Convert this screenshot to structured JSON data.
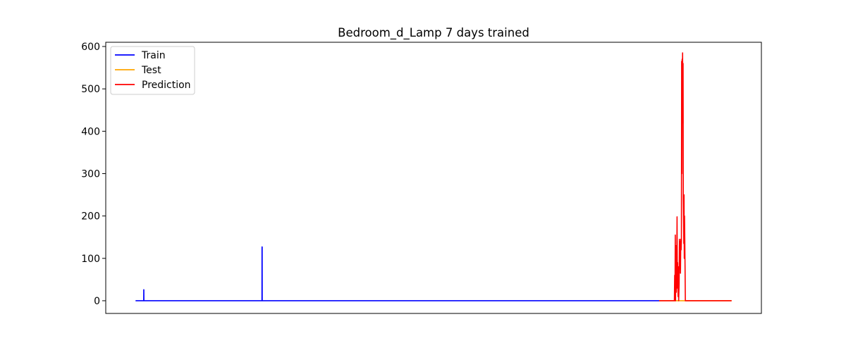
{
  "chart_data": {
    "type": "line",
    "title": "Bedroom_d_Lamp 7 days trained",
    "xlabel": "",
    "ylabel": "",
    "x_ticks_shown": false,
    "xlim": [
      -0.05,
      1.05
    ],
    "ylim": [
      -30,
      610
    ],
    "yticks": [
      0,
      100,
      200,
      300,
      400,
      500,
      600
    ],
    "grid": false,
    "legend_position": "upper left",
    "series": [
      {
        "name": "Train",
        "color": "#0000ff",
        "points": [
          [
            0.0,
            0
          ],
          [
            0.0137,
            0
          ],
          [
            0.0138,
            26
          ],
          [
            0.0139,
            26
          ],
          [
            0.014,
            0
          ],
          [
            0.2121,
            0
          ],
          [
            0.2122,
            127
          ],
          [
            0.2124,
            127
          ],
          [
            0.2125,
            0
          ],
          [
            0.8785,
            0
          ]
        ]
      },
      {
        "name": "Test",
        "color": "#ffa500",
        "points": [
          [
            0.8785,
            0
          ],
          [
            1.0,
            0
          ]
        ]
      },
      {
        "name": "Prediction",
        "color": "#ff0000",
        "points": [
          [
            0.8785,
            0
          ],
          [
            0.904,
            0
          ],
          [
            0.9045,
            60
          ],
          [
            0.905,
            0
          ],
          [
            0.9055,
            155
          ],
          [
            0.906,
            0
          ],
          [
            0.9068,
            130
          ],
          [
            0.9073,
            20
          ],
          [
            0.908,
            85
          ],
          [
            0.9085,
            198
          ],
          [
            0.909,
            30
          ],
          [
            0.9095,
            90
          ],
          [
            0.9102,
            10
          ],
          [
            0.9108,
            80
          ],
          [
            0.9112,
            0
          ],
          [
            0.912,
            40
          ],
          [
            0.9125,
            145
          ],
          [
            0.913,
            75
          ],
          [
            0.9136,
            140
          ],
          [
            0.9142,
            65
          ],
          [
            0.9148,
            145
          ],
          [
            0.9153,
            120
          ],
          [
            0.9158,
            140
          ],
          [
            0.9162,
            565
          ],
          [
            0.9166,
            300
          ],
          [
            0.917,
            570
          ],
          [
            0.9174,
            520
          ],
          [
            0.9178,
            585
          ],
          [
            0.9182,
            420
          ],
          [
            0.9186,
            560
          ],
          [
            0.919,
            240
          ],
          [
            0.9194,
            190
          ],
          [
            0.9198,
            135
          ],
          [
            0.9202,
            250
          ],
          [
            0.9206,
            100
          ],
          [
            0.921,
            200
          ],
          [
            0.9215,
            140
          ],
          [
            0.922,
            65
          ],
          [
            0.9224,
            0
          ],
          [
            1.0,
            0
          ]
        ]
      }
    ]
  }
}
